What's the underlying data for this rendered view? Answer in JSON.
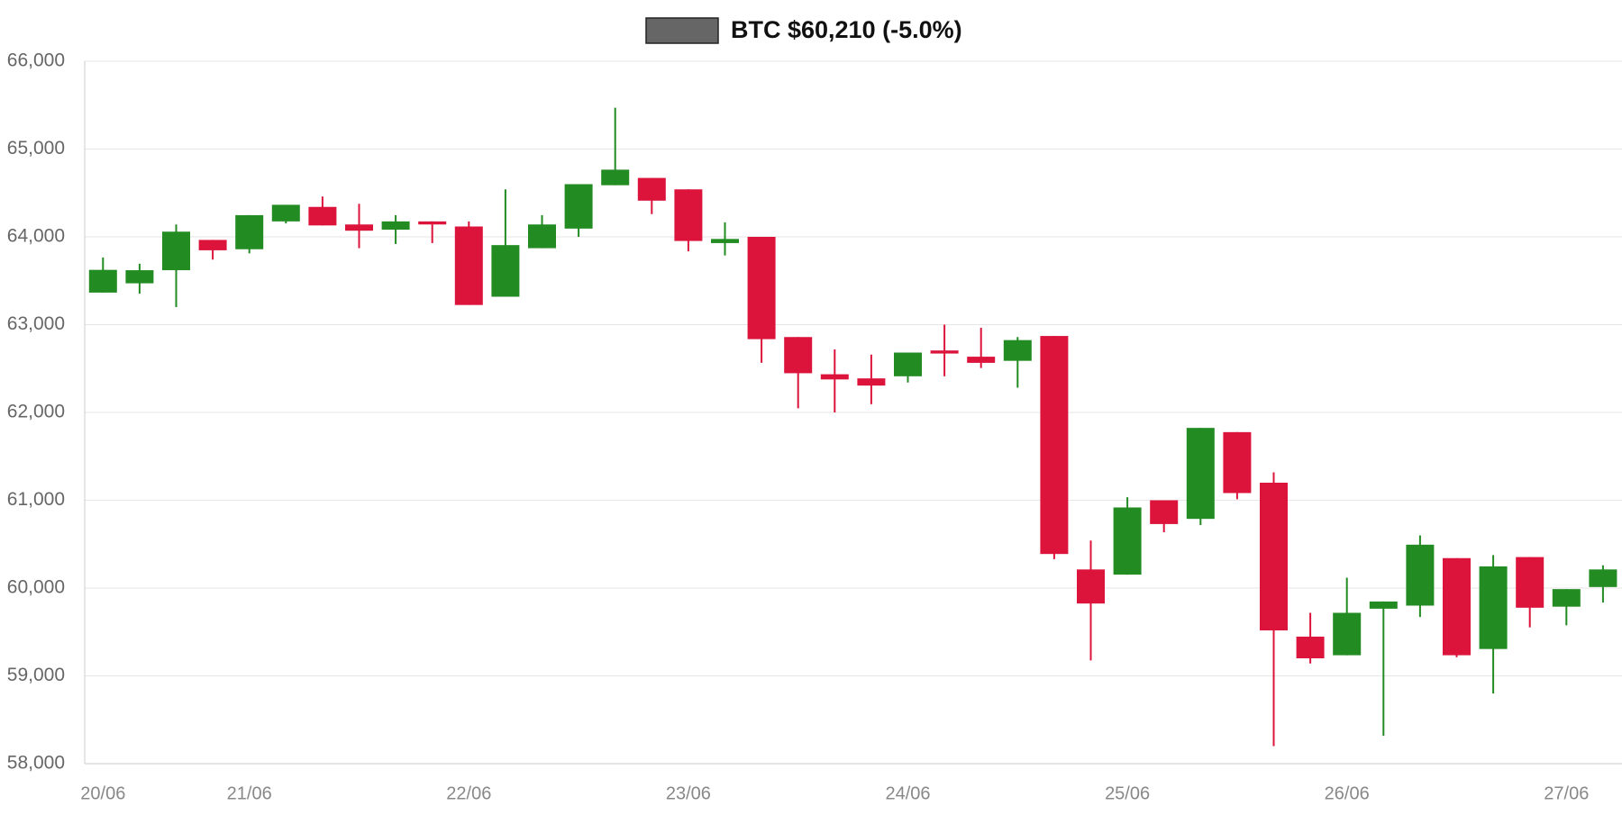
{
  "chart_data": {
    "type": "candlestick",
    "series": [
      {
        "name": "BTC $60,210 (-5.0%)",
        "color": "#666666"
      }
    ],
    "up_color": "#228b22",
    "down_color": "#dc143c",
    "categories": [
      "20/06",
      null,
      null,
      null,
      "21/06",
      null,
      null,
      null,
      null,
      null,
      "22/06",
      null,
      null,
      null,
      null,
      null,
      "23/06",
      null,
      null,
      null,
      null,
      null,
      "24/06",
      null,
      null,
      null,
      null,
      null,
      "25/06",
      null,
      null,
      null,
      null,
      null,
      "26/06",
      null,
      null,
      null,
      null,
      null,
      "27/06",
      null
    ],
    "open": [
      63365,
      63471,
      63620,
      63965,
      63859,
      64176,
      64341,
      64141,
      64082,
      64176,
      64118,
      63318,
      63871,
      64094,
      64588,
      64671,
      64541,
      63929,
      64000,
      62859,
      62435,
      62388,
      62412,
      62706,
      62635,
      62588,
      62871,
      60212,
      60153,
      61000,
      60788,
      61776,
      61200,
      59447,
      59235,
      59765,
      59800,
      60341,
      59306,
      60353,
      59788,
      60012
    ],
    "high": [
      63765,
      63694,
      64141,
      63965,
      64247,
      64365,
      64459,
      64376,
      64247,
      64176,
      64176,
      64541,
      64247,
      64600,
      65471,
      64671,
      64541,
      64165,
      64000,
      62859,
      62718,
      62659,
      62682,
      63000,
      62965,
      62859,
      62871,
      60541,
      61035,
      61000,
      61824,
      61776,
      61318,
      59718,
      60118,
      59847,
      60600,
      60341,
      60376,
      60353,
      59988,
      60259
    ],
    "low": [
      63365,
      63353,
      63200,
      63741,
      63812,
      64153,
      64130,
      63871,
      63918,
      63929,
      63224,
      63318,
      63871,
      64000,
      64588,
      64259,
      63835,
      63788,
      62565,
      62047,
      62000,
      62094,
      62341,
      62412,
      62506,
      62282,
      60329,
      59176,
      60153,
      60635,
      60718,
      61012,
      58200,
      59141,
      59235,
      58318,
      59671,
      59212,
      58800,
      59553,
      59576,
      59835
    ],
    "close": [
      63624,
      63620,
      64059,
      63847,
      64247,
      64365,
      64130,
      64070,
      64176,
      64141,
      63224,
      63906,
      64141,
      64600,
      64765,
      64412,
      63953,
      63976,
      62835,
      62447,
      62376,
      62306,
      62682,
      62671,
      62565,
      62824,
      60388,
      59824,
      60918,
      60729,
      61824,
      61082,
      59518,
      59200,
      59718,
      59847,
      60494,
      59235,
      60247,
      59776,
      59988,
      60212
    ],
    "ylim": [
      58000,
      66000
    ],
    "yticks": [
      {
        "value": 58000,
        "label": "58,000"
      },
      {
        "value": 59000,
        "label": "59,000"
      },
      {
        "value": 60000,
        "label": "60,000"
      },
      {
        "value": 61000,
        "label": "61,000"
      },
      {
        "value": 62000,
        "label": "62,000"
      },
      {
        "value": 63000,
        "label": "63,000"
      },
      {
        "value": 64000,
        "label": "64,000"
      },
      {
        "value": 65000,
        "label": "65,000"
      },
      {
        "value": 66000,
        "label": "66,000"
      }
    ],
    "grid": true
  }
}
